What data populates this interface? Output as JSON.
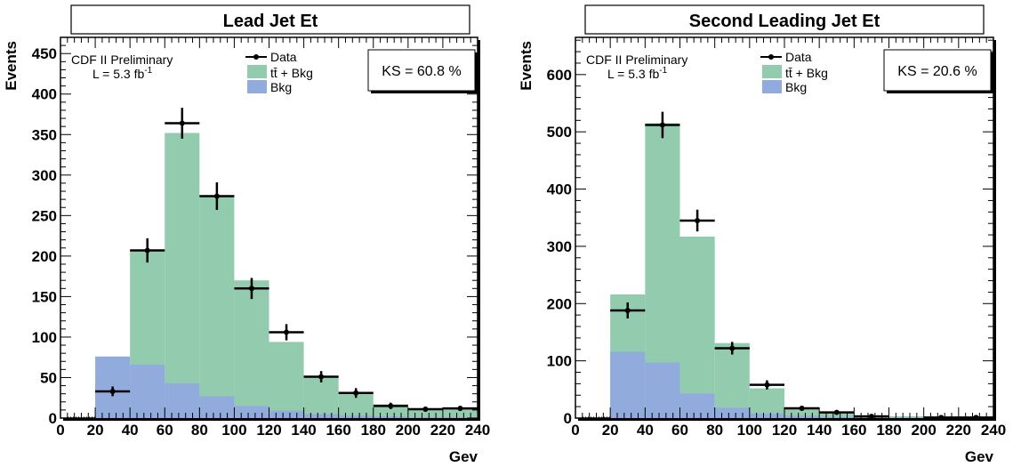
{
  "colors": {
    "signal": "#93cbae",
    "background": "#91acdc",
    "data": "#000000"
  },
  "chart_data": [
    {
      "type": "bar",
      "title": "Lead Jet Et",
      "xlabel": "Gev",
      "ylabel": "Events",
      "xlim": [
        0,
        240
      ],
      "ylim": [
        0,
        470
      ],
      "xticks": [
        0,
        20,
        40,
        60,
        80,
        100,
        120,
        140,
        160,
        180,
        200,
        220,
        240
      ],
      "yticks": [
        0,
        50,
        100,
        150,
        200,
        250,
        300,
        350,
        400,
        450
      ],
      "bin_edges": [
        20,
        40,
        60,
        80,
        100,
        120,
        140,
        160,
        180,
        200,
        220,
        240
      ],
      "total_mc": [
        46,
        207,
        352,
        275,
        170,
        94,
        51,
        30,
        17,
        12,
        12
      ],
      "bkg": [
        76,
        66,
        43,
        27,
        15,
        9,
        5,
        3,
        2,
        1,
        1
      ],
      "data_points": [
        {
          "x": 30,
          "y": 33,
          "err": 6
        },
        {
          "x": 50,
          "y": 207,
          "err": 15
        },
        {
          "x": 70,
          "y": 364,
          "err": 19
        },
        {
          "x": 90,
          "y": 274,
          "err": 17
        },
        {
          "x": 110,
          "y": 160,
          "err": 13
        },
        {
          "x": 130,
          "y": 106,
          "err": 10
        },
        {
          "x": 150,
          "y": 51,
          "err": 7
        },
        {
          "x": 170,
          "y": 31,
          "err": 6
        },
        {
          "x": 190,
          "y": 15,
          "err": 4
        },
        {
          "x": 210,
          "y": 11,
          "err": 3
        },
        {
          "x": 230,
          "y": 12,
          "err": 3
        }
      ],
      "legend": {
        "experiment": "CDF II Preliminary",
        "lumi_prefix": "L = 5.3 fb",
        "lumi_sup": "-1",
        "entries": [
          "Data",
          "tt̄ + Bkg",
          "Bkg"
        ]
      },
      "ks_text": "KS = 60.8 %"
    },
    {
      "type": "bar",
      "title": "Second Leading Jet Et",
      "xlabel": "Gev",
      "ylabel": "Events",
      "xlim": [
        0,
        240
      ],
      "ylim": [
        0,
        665
      ],
      "xticks": [
        0,
        20,
        40,
        60,
        80,
        100,
        120,
        140,
        160,
        180,
        200,
        220,
        240
      ],
      "yticks": [
        0,
        100,
        200,
        300,
        400,
        500,
        600
      ],
      "bin_edges": [
        20,
        40,
        60,
        80,
        100,
        120,
        140,
        160,
        180,
        200,
        220,
        240
      ],
      "total_mc": [
        216,
        515,
        317,
        131,
        52,
        18,
        10,
        5,
        3,
        2,
        1
      ],
      "bkg": [
        116,
        97,
        43,
        18,
        8,
        4,
        2,
        1,
        1,
        0,
        0
      ],
      "data_points": [
        {
          "x": 30,
          "y": 188,
          "err": 14
        },
        {
          "x": 50,
          "y": 512,
          "err": 23
        },
        {
          "x": 70,
          "y": 345,
          "err": 19
        },
        {
          "x": 90,
          "y": 122,
          "err": 11
        },
        {
          "x": 110,
          "y": 58,
          "err": 8
        },
        {
          "x": 130,
          "y": 17,
          "err": 4
        },
        {
          "x": 150,
          "y": 10,
          "err": 3
        },
        {
          "x": 170,
          "y": 3,
          "err": 2
        },
        {
          "x": 210,
          "y": 1,
          "err": 1
        },
        {
          "x": 230,
          "y": 1,
          "err": 1
        }
      ],
      "legend": {
        "experiment": "CDF II Preliminary",
        "lumi_prefix": "L = 5.3 fb",
        "lumi_sup": "-1",
        "entries": [
          "Data",
          "tt̄ + Bkg",
          "Bkg"
        ]
      },
      "ks_text": "KS = 20.6 %"
    }
  ]
}
